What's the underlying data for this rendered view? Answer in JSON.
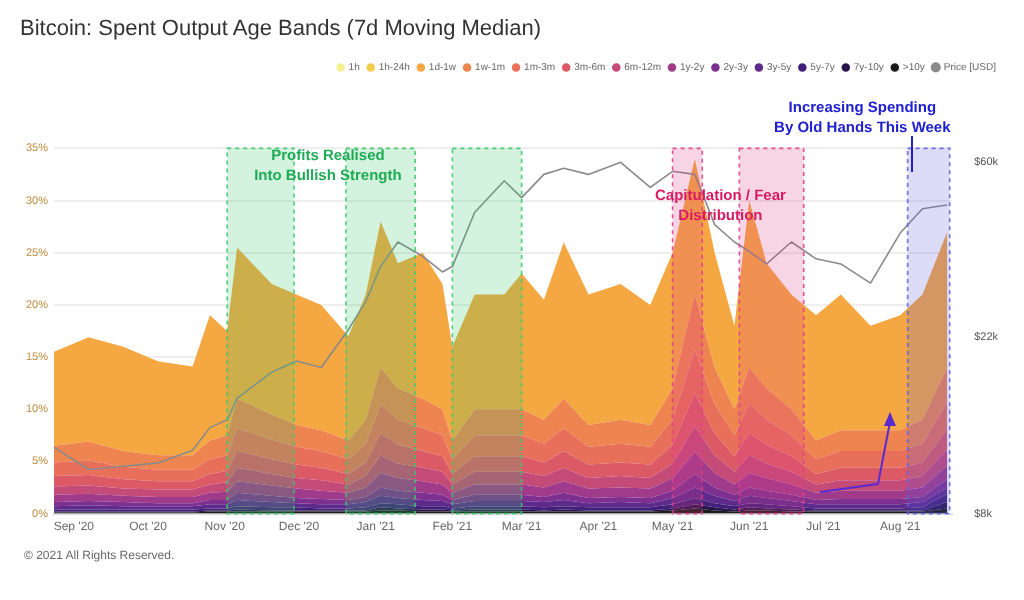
{
  "chart_data": {
    "type": "area",
    "title": "Bitcoin: Spent Output Age Bands (7d Moving Median)",
    "stacked": true,
    "legend": "top right",
    "grid": "y",
    "log": "y2",
    "x": [
      "2020-08-24",
      "2020-09-07",
      "2020-09-21",
      "2020-10-05",
      "2020-10-19",
      "2020-10-26",
      "2020-11-02",
      "2020-11-06",
      "2020-11-20",
      "2020-11-30",
      "2020-12-10",
      "2020-12-21",
      "2020-12-28",
      "2021-01-03",
      "2021-01-10",
      "2021-01-20",
      "2021-01-28",
      "2021-02-01",
      "2021-02-10",
      "2021-02-22",
      "2021-03-01",
      "2021-03-10",
      "2021-03-18",
      "2021-03-28",
      "2021-04-10",
      "2021-04-22",
      "2021-05-01",
      "2021-05-10",
      "2021-05-18",
      "2021-05-26",
      "2021-06-01",
      "2021-06-08",
      "2021-06-18",
      "2021-06-28",
      "2021-07-08",
      "2021-07-20",
      "2021-08-01",
      "2021-08-10",
      "2021-08-20"
    ],
    "xlim": [
      "2020-08-24",
      "2021-08-22"
    ],
    "xticks": [
      {
        "value": "2020-09-01",
        "label": "Sep '20"
      },
      {
        "value": "2020-10-01",
        "label": "Oct '20"
      },
      {
        "value": "2020-11-01",
        "label": "Nov '20"
      },
      {
        "value": "2020-12-01",
        "label": "Dec '20"
      },
      {
        "value": "2021-01-01",
        "label": "Jan '21"
      },
      {
        "value": "2021-02-01",
        "label": "Feb '21"
      },
      {
        "value": "2021-03-01",
        "label": "Mar '21"
      },
      {
        "value": "2021-04-01",
        "label": "Apr '21"
      },
      {
        "value": "2021-05-01",
        "label": "May '21"
      },
      {
        "value": "2021-06-01",
        "label": "Jun '21"
      },
      {
        "value": "2021-07-01",
        "label": "Jul '21"
      },
      {
        "value": "2021-08-01",
        "label": "Aug '21"
      }
    ],
    "ylim": [
      0,
      35
    ],
    "yticks": [
      {
        "value": 0,
        "label": "0%"
      },
      {
        "value": 5,
        "label": "5%"
      },
      {
        "value": 10,
        "label": "10%"
      },
      {
        "value": 15,
        "label": "15%"
      },
      {
        "value": 20,
        "label": "20%"
      },
      {
        "value": 25,
        "label": "25%"
      },
      {
        "value": 30,
        "label": "30%"
      },
      {
        "value": 35,
        "label": "35%"
      }
    ],
    "y2lim": [
      8000,
      65000
    ],
    "y2ticks": [
      {
        "value": 8000,
        "label": "$8k"
      },
      {
        "value": 22000,
        "label": "$22k"
      },
      {
        "value": 60000,
        "label": "$60k"
      }
    ],
    "series": [
      {
        "name": ">10y",
        "color": "#1a1a1a",
        "values": [
          0.1,
          0.1,
          0.1,
          0.1,
          0.1,
          0.2,
          0.2,
          0.2,
          0.2,
          0.2,
          0.2,
          0.2,
          0.2,
          0.3,
          0.3,
          0.2,
          0.2,
          0.2,
          0.2,
          0.2,
          0.2,
          0.2,
          0.2,
          0.2,
          0.2,
          0.2,
          0.3,
          0.5,
          0.3,
          0.2,
          0.3,
          0.3,
          0.2,
          0.2,
          0.2,
          0.2,
          0.2,
          0.2,
          0.5
        ]
      },
      {
        "name": "7y-10y",
        "color": "#2a1450",
        "values": [
          0.1,
          0.1,
          0.1,
          0.1,
          0.1,
          0.1,
          0.1,
          0.2,
          0.1,
          0.1,
          0.1,
          0.1,
          0.1,
          0.3,
          0.2,
          0.2,
          0.2,
          0.1,
          0.2,
          0.2,
          0.2,
          0.1,
          0.2,
          0.1,
          0.1,
          0.1,
          0.2,
          0.4,
          0.3,
          0.2,
          0.3,
          0.2,
          0.2,
          0.1,
          0.1,
          0.1,
          0.1,
          0.1,
          0.6
        ]
      },
      {
        "name": "5y-7y",
        "color": "#42207a",
        "values": [
          0.2,
          0.2,
          0.2,
          0.2,
          0.2,
          0.2,
          0.2,
          0.3,
          0.3,
          0.3,
          0.2,
          0.2,
          0.3,
          0.4,
          0.4,
          0.3,
          0.3,
          0.2,
          0.3,
          0.3,
          0.3,
          0.3,
          0.3,
          0.3,
          0.3,
          0.3,
          0.4,
          0.6,
          0.4,
          0.3,
          0.4,
          0.4,
          0.3,
          0.2,
          0.2,
          0.2,
          0.2,
          0.3,
          0.8
        ]
      },
      {
        "name": "3y-5y",
        "color": "#5e2a8c",
        "values": [
          0.3,
          0.4,
          0.3,
          0.3,
          0.3,
          0.4,
          0.4,
          0.6,
          0.5,
          0.4,
          0.4,
          0.4,
          0.5,
          0.7,
          0.6,
          0.6,
          0.5,
          0.4,
          0.5,
          0.5,
          0.5,
          0.5,
          0.6,
          0.4,
          0.5,
          0.4,
          0.6,
          1.0,
          0.7,
          0.5,
          0.7,
          0.6,
          0.5,
          0.4,
          0.4,
          0.4,
          0.4,
          0.5,
          0.6
        ]
      },
      {
        "name": "2y-3y",
        "color": "#7e3090",
        "values": [
          0.4,
          0.4,
          0.4,
          0.3,
          0.3,
          0.4,
          0.4,
          0.7,
          0.6,
          0.5,
          0.5,
          0.4,
          0.5,
          0.8,
          0.7,
          0.7,
          0.6,
          0.4,
          0.6,
          0.6,
          0.6,
          0.5,
          0.7,
          0.5,
          0.5,
          0.5,
          0.7,
          1.3,
          0.8,
          0.6,
          0.8,
          0.7,
          0.6,
          0.4,
          0.5,
          0.5,
          0.5,
          0.5,
          0.8
        ]
      },
      {
        "name": "1y-2y",
        "color": "#a03a8a",
        "values": [
          0.7,
          0.7,
          0.6,
          0.6,
          0.6,
          0.7,
          0.8,
          1.1,
          1.0,
          0.9,
          0.8,
          0.7,
          0.9,
          1.4,
          1.2,
          1.1,
          1.0,
          0.7,
          1.0,
          1.0,
          1.0,
          0.9,
          1.1,
          0.9,
          0.9,
          0.9,
          1.2,
          2.1,
          1.4,
          1.0,
          1.4,
          1.2,
          1.0,
          0.7,
          0.8,
          0.8,
          0.8,
          0.9,
          1.3
        ]
      },
      {
        "name": "6m-12m",
        "color": "#c44a78",
        "values": [
          0.8,
          0.8,
          0.7,
          0.7,
          0.7,
          0.8,
          0.9,
          1.3,
          1.1,
          1.0,
          1.0,
          0.8,
          1.1,
          1.7,
          1.4,
          1.3,
          1.2,
          0.8,
          1.2,
          1.2,
          1.2,
          1.1,
          1.3,
          1.0,
          1.1,
          1.0,
          1.4,
          2.5,
          1.7,
          1.2,
          1.7,
          1.4,
          1.2,
          0.8,
          1.0,
          1.0,
          1.0,
          1.1,
          1.6
        ]
      },
      {
        "name": "3m-6m",
        "color": "#dc5a66",
        "values": [
          1.0,
          1.0,
          0.9,
          0.8,
          0.8,
          1.0,
          1.1,
          1.6,
          1.4,
          1.3,
          1.2,
          1.0,
          1.3,
          2.1,
          1.8,
          1.6,
          1.5,
          1.0,
          1.5,
          1.5,
          1.5,
          1.3,
          1.6,
          1.3,
          1.3,
          1.3,
          1.8,
          3.1,
          2.1,
          1.5,
          2.1,
          1.8,
          1.5,
          1.0,
          1.2,
          1.2,
          1.2,
          1.3,
          1.9
        ]
      },
      {
        "name": "1m-3m",
        "color": "#e8705a",
        "values": [
          1.3,
          1.4,
          1.2,
          1.1,
          1.1,
          1.4,
          1.5,
          2.2,
          1.9,
          1.7,
          1.6,
          1.4,
          1.8,
          2.8,
          2.4,
          2.2,
          2.0,
          1.4,
          2.0,
          2.0,
          2.0,
          1.8,
          2.2,
          1.7,
          1.8,
          1.7,
          2.4,
          4.2,
          2.8,
          2.0,
          2.8,
          2.4,
          2.0,
          1.4,
          1.6,
          1.6,
          1.6,
          1.8,
          2.6
        ]
      },
      {
        "name": "1w-1m",
        "color": "#ee8450",
        "values": [
          1.6,
          1.8,
          1.5,
          1.4,
          1.4,
          1.8,
          1.9,
          2.8,
          2.4,
          2.1,
          2.0,
          1.8,
          2.3,
          3.5,
          3.0,
          2.8,
          2.5,
          1.8,
          2.5,
          2.5,
          2.5,
          2.3,
          2.8,
          2.1,
          2.3,
          2.1,
          3.0,
          5.3,
          3.5,
          2.5,
          3.5,
          3.0,
          2.5,
          1.8,
          2.0,
          2.0,
          2.0,
          2.3,
          3.3
        ]
      },
      {
        "name": "1d-1w",
        "color": "#f5a742",
        "values": [
          9,
          10,
          10,
          9,
          8.5,
          12,
          10,
          14.5,
          12.5,
          12.5,
          12,
          10,
          12,
          14,
          12,
          14,
          12,
          9,
          11,
          11,
          13,
          11.5,
          15,
          12.5,
          13,
          11.5,
          13,
          13,
          11,
          8,
          16,
          12,
          11,
          12,
          13,
          10,
          11,
          12,
          13
        ]
      },
      {
        "name": "1h-24h",
        "color": "#f2cc4a",
        "values": [
          null,
          null,
          null,
          null,
          null,
          null,
          null,
          null,
          null,
          null,
          null,
          null,
          null,
          null,
          null,
          null,
          null,
          null,
          null,
          null,
          null,
          null,
          null,
          null,
          null,
          null,
          null,
          null,
          null,
          null,
          null,
          null,
          null,
          null,
          null,
          null,
          null,
          null,
          null
        ]
      },
      {
        "name": "1h",
        "color": "#f4ee90",
        "values": [
          null,
          null,
          null,
          null,
          null,
          null,
          null,
          null,
          null,
          null,
          null,
          null,
          null,
          null,
          null,
          null,
          null,
          null,
          null,
          null,
          null,
          null,
          null,
          null,
          null,
          null,
          null,
          null,
          null,
          null,
          null,
          null,
          null,
          null,
          null,
          null,
          null,
          null,
          null
        ]
      },
      {
        "name": "Price [USD]",
        "type": "line",
        "axis": "y2",
        "color": "#8a8a8a",
        "values": [
          11700,
          10300,
          10500,
          10700,
          11500,
          13100,
          13700,
          15500,
          18000,
          19200,
          18500,
          23000,
          27000,
          33000,
          38000,
          35000,
          32000,
          33000,
          45000,
          54000,
          49000,
          56000,
          58000,
          56000,
          60000,
          52000,
          57000,
          56000,
          42000,
          38000,
          36000,
          33500,
          38000,
          34500,
          33500,
          30000,
          40000,
          46000,
          47000
        ]
      }
    ],
    "bands": [
      {
        "axis": "x",
        "from": "2020-11-02",
        "to": "2020-11-29",
        "color": "#3cc86e"
      },
      {
        "axis": "x",
        "from": "2020-12-20",
        "to": "2021-01-17",
        "color": "#3cc86e"
      },
      {
        "axis": "x",
        "from": "2021-02-01",
        "to": "2021-03-01",
        "color": "#3cc86e"
      },
      {
        "axis": "x",
        "from": "2021-05-01",
        "to": "2021-05-13",
        "color": "#e0408a"
      },
      {
        "axis": "x",
        "from": "2021-05-28",
        "to": "2021-06-23",
        "color": "#e0408a"
      },
      {
        "axis": "x",
        "from": "2021-08-04",
        "to": "2021-08-21",
        "color": "#6060e0"
      }
    ],
    "annotations": [
      "Profits Realised\nInto Bullish Strength",
      "Capitulation / Fear\nDistribution",
      "Increasing Spending\nBy Old Hands This Week",
      "© 2021 All Rights Reserved."
    ]
  }
}
